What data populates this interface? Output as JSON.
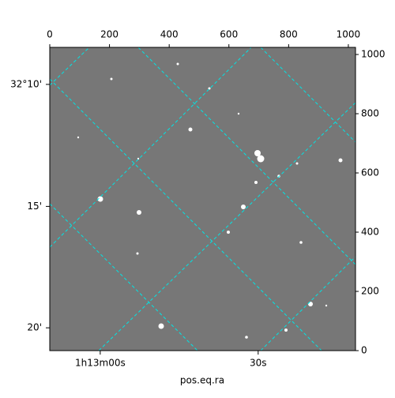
{
  "chart_data": {
    "type": "image",
    "xlabel": "pos.eq.ra",
    "xlim": [
      0,
      1024
    ],
    "ylim": [
      0,
      1024
    ],
    "xticks": [
      0,
      200,
      400,
      600,
      800,
      1000
    ],
    "yticks": [
      0,
      200,
      400,
      600,
      800,
      1000
    ],
    "world_xticks": [
      {
        "value": 169,
        "label": "1h13m00s"
      },
      {
        "value": 698,
        "label": "30s"
      }
    ],
    "world_yticks": [
      {
        "value": 899,
        "label": "32°10'"
      },
      {
        "value": 487,
        "label": "15'"
      },
      {
        "value": 77,
        "label": "20'"
      }
    ],
    "grid": true
  }
}
